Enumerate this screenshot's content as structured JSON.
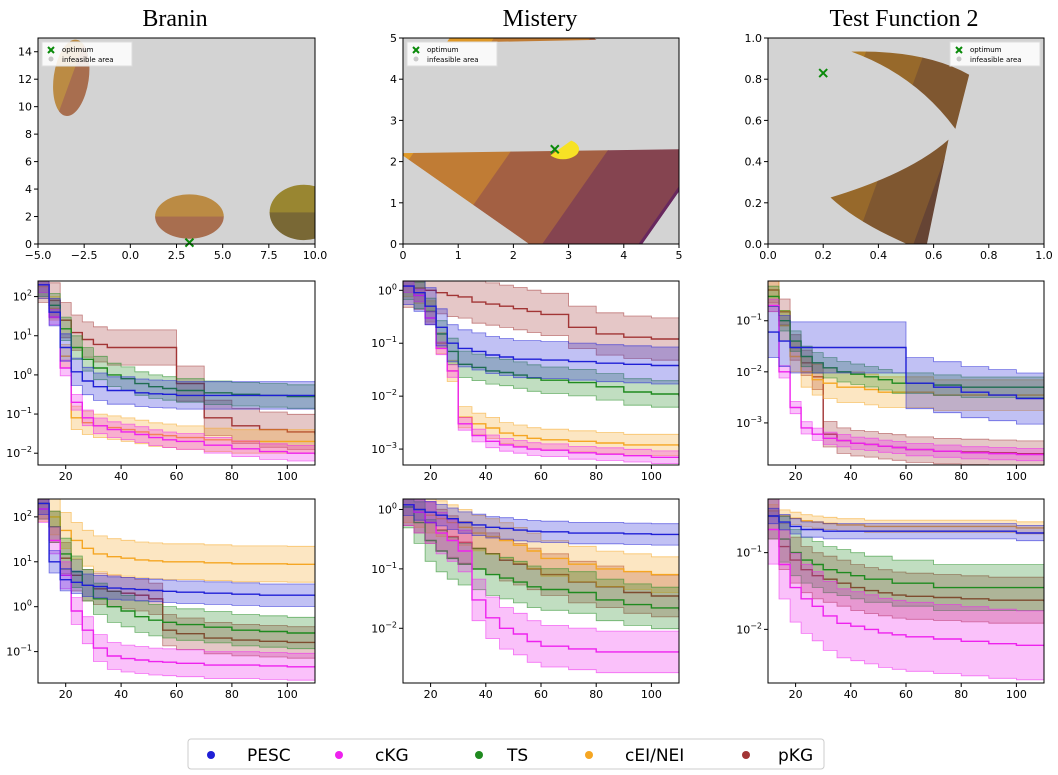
{
  "colors": {
    "PESC": "#1f1fd6",
    "cKG": "#ee22ee",
    "TS": "#1f8a1f",
    "cEI/NEI": "#f5a623",
    "pKG": "#a23535",
    "infeasible": "#d3d3d3",
    "optimum": "#0a8a0a"
  },
  "columns": [
    "Branin",
    "Mistery",
    "Test Function 2"
  ],
  "legend": {
    "entries": [
      "PESC",
      "cKG",
      "TS",
      "cEI/NEI",
      "pKG"
    ]
  },
  "chart_data": [
    {
      "type": "heatmap",
      "title": "Branin",
      "xlim": [
        -5,
        10
      ],
      "ylim": [
        0,
        15
      ],
      "xticks": [
        "−5.0",
        "−2.5",
        "0.0",
        "2.5",
        "5.0",
        "7.5",
        "10.0"
      ],
      "yticks": [
        "0",
        "2",
        "4",
        "6",
        "8",
        "10",
        "12",
        "14"
      ],
      "optimum": [
        3.2,
        0.1
      ],
      "legend": [
        "optimum",
        "infeasible area"
      ]
    },
    {
      "type": "heatmap",
      "title": "Mistery",
      "xlim": [
        0,
        5
      ],
      "ylim": [
        0,
        5
      ],
      "xticks": [
        "0",
        "1",
        "2",
        "3",
        "4",
        "5"
      ],
      "yticks": [
        "0",
        "1",
        "2",
        "3",
        "4",
        "5"
      ],
      "optimum": [
        2.75,
        2.3
      ],
      "legend": [
        "optimum",
        "infeasible area"
      ]
    },
    {
      "type": "heatmap",
      "title": "Test Function 2",
      "xlim": [
        0,
        1
      ],
      "ylim": [
        0,
        1
      ],
      "xticks": [
        "0.0",
        "0.2",
        "0.4",
        "0.6",
        "0.8",
        "1.0"
      ],
      "yticks": [
        "0.0",
        "0.2",
        "0.4",
        "0.6",
        "0.8",
        "1.0"
      ],
      "optimum": [
        0.2,
        0.83
      ],
      "legend": [
        "optimum",
        "infeasible area"
      ]
    },
    {
      "type": "line",
      "scale": "log",
      "xlim": [
        10,
        110
      ],
      "ylim": [
        0.005,
        250
      ],
      "xticks": [
        20,
        40,
        60,
        80,
        100
      ],
      "ytick_exps": [
        -2,
        -1,
        0,
        1,
        2
      ],
      "x": [
        10,
        14,
        18,
        22,
        26,
        30,
        35,
        40,
        45,
        50,
        55,
        60,
        70,
        80,
        90,
        100,
        110
      ],
      "series": [
        {
          "name": "PESC",
          "values": [
            200,
            40,
            5,
            1.2,
            0.7,
            0.5,
            0.4,
            0.4,
            0.35,
            0.33,
            0.32,
            0.3,
            0.3,
            0.3,
            0.3,
            0.3,
            0.3
          ],
          "band": 0.35
        },
        {
          "name": "cKG",
          "values": [
            200,
            30,
            1.5,
            0.2,
            0.08,
            0.05,
            0.04,
            0.035,
            0.03,
            0.025,
            0.022,
            0.02,
            0.016,
            0.013,
            0.011,
            0.01,
            0.009
          ],
          "band": 0.2
        },
        {
          "name": "TS",
          "values": [
            200,
            60,
            15,
            5,
            2.5,
            1.5,
            1,
            0.8,
            0.6,
            0.5,
            0.45,
            0.4,
            0.35,
            0.32,
            0.3,
            0.28,
            0.27
          ],
          "band": 0.3
        },
        {
          "name": "cEI/NEI",
          "values": [
            180,
            50,
            3,
            0.08,
            0.06,
            0.05,
            0.045,
            0.04,
            0.035,
            0.03,
            0.028,
            0.025,
            0.022,
            0.02,
            0.02,
            0.02,
            0.02
          ],
          "band": 0.3
        },
        {
          "name": "pKG",
          "values": [
            200,
            80,
            25,
            12,
            8,
            6,
            5,
            5,
            5,
            5,
            5,
            0.6,
            0.08,
            0.05,
            0.04,
            0.035,
            0.03
          ],
          "band": 0.45
        }
      ]
    },
    {
      "type": "line",
      "scale": "log",
      "xlim": [
        10,
        110
      ],
      "ylim": [
        0.0005,
        1.5
      ],
      "xticks": [
        20,
        40,
        60,
        80,
        100
      ],
      "ytick_exps": [
        -3,
        -2,
        -1,
        0
      ],
      "x": [
        10,
        14,
        18,
        22,
        26,
        30,
        35,
        40,
        45,
        50,
        55,
        60,
        70,
        80,
        90,
        100,
        110
      ],
      "series": [
        {
          "name": "PESC",
          "values": [
            1.2,
            0.9,
            0.5,
            0.2,
            0.1,
            0.08,
            0.07,
            0.06,
            0.055,
            0.05,
            0.05,
            0.048,
            0.045,
            0.042,
            0.04,
            0.038,
            0.037
          ],
          "band": 0.35
        },
        {
          "name": "cKG",
          "values": [
            1.2,
            0.8,
            0.3,
            0.08,
            0.03,
            0.003,
            0.0018,
            0.0014,
            0.0012,
            0.0011,
            0.001,
            0.00095,
            0.00085,
            0.0008,
            0.00075,
            0.0007,
            0.00068
          ],
          "band": 0.12
        },
        {
          "name": "TS",
          "values": [
            1.2,
            0.8,
            0.4,
            0.15,
            0.07,
            0.04,
            0.035,
            0.03,
            0.028,
            0.025,
            0.022,
            0.02,
            0.018,
            0.015,
            0.012,
            0.011,
            0.01
          ],
          "band": 0.25
        },
        {
          "name": "cEI/NEI",
          "values": [
            1.2,
            0.9,
            0.4,
            0.1,
            0.03,
            0.004,
            0.003,
            0.0025,
            0.002,
            0.0018,
            0.0016,
            0.0015,
            0.0014,
            0.0013,
            0.0012,
            0.0012,
            0.0011
          ],
          "band": 0.2
        },
        {
          "name": "pKG",
          "values": [
            1.2,
            1.1,
            1,
            0.9,
            0.8,
            0.75,
            0.6,
            0.55,
            0.5,
            0.45,
            0.4,
            0.35,
            0.2,
            0.15,
            0.13,
            0.12,
            0.12
          ],
          "band": 0.4
        }
      ]
    },
    {
      "type": "line",
      "scale": "log",
      "xlim": [
        10,
        110
      ],
      "ylim": [
        0.00015,
        0.6
      ],
      "xticks": [
        20,
        40,
        60,
        80,
        100
      ],
      "ytick_exps": [
        -3,
        -2,
        -1
      ],
      "x": [
        10,
        14,
        18,
        22,
        26,
        30,
        35,
        40,
        45,
        50,
        55,
        60,
        70,
        80,
        90,
        100,
        110
      ],
      "series": [
        {
          "name": "PESC",
          "values": [
            0.06,
            0.04,
            0.03,
            0.03,
            0.03,
            0.03,
            0.03,
            0.03,
            0.03,
            0.03,
            0.03,
            0.006,
            0.005,
            0.004,
            0.0035,
            0.003,
            0.003
          ],
          "band": 0.5
        },
        {
          "name": "cKG",
          "values": [
            0.2,
            0.01,
            0.002,
            0.0008,
            0.0006,
            0.0005,
            0.00045,
            0.0004,
            0.00038,
            0.00035,
            0.00033,
            0.0003,
            0.00028,
            0.00026,
            0.00025,
            0.00024,
            0.00023
          ],
          "band": 0.12
        },
        {
          "name": "TS",
          "values": [
            0.3,
            0.1,
            0.04,
            0.02,
            0.015,
            0.012,
            0.01,
            0.009,
            0.008,
            0.007,
            0.006,
            0.006,
            0.0055,
            0.005,
            0.005,
            0.005,
            0.005
          ],
          "band": 0.2
        },
        {
          "name": "cEI/NEI",
          "values": [
            0.3,
            0.08,
            0.02,
            0.01,
            0.007,
            0.006,
            0.005,
            0.005,
            0.0045,
            0.004,
            0.004,
            0.004,
            0.0035,
            0.0035,
            0.0035,
            0.0035,
            0.0035
          ],
          "band": 0.3
        },
        {
          "name": "pKG",
          "values": [
            0.4,
            0.15,
            0.03,
            0.015,
            0.008,
            0.0006,
            0.00045,
            0.0004,
            0.00038,
            0.00035,
            0.00033,
            0.0003,
            0.00028,
            0.00027,
            0.00026,
            0.00025,
            0.00024
          ],
          "band": 0.25
        }
      ]
    },
    {
      "type": "line",
      "scale": "log",
      "xlim": [
        10,
        110
      ],
      "ylim": [
        0.02,
        250
      ],
      "xticks": [
        20,
        40,
        60,
        80,
        100
      ],
      "ytick_exps": [
        -1,
        0,
        1,
        2
      ],
      "x": [
        10,
        14,
        18,
        22,
        26,
        30,
        35,
        40,
        45,
        50,
        55,
        60,
        70,
        80,
        90,
        100,
        110
      ],
      "series": [
        {
          "name": "PESC",
          "values": [
            200,
            10,
            4,
            3.5,
            3,
            2.8,
            2.6,
            2.5,
            2.4,
            2.3,
            2.2,
            2.1,
            2,
            1.9,
            1.8,
            1.8,
            1.7
          ],
          "band": 0.25
        },
        {
          "name": "cKG",
          "values": [
            150,
            30,
            5,
            0.8,
            0.3,
            0.12,
            0.08,
            0.07,
            0.065,
            0.06,
            0.058,
            0.055,
            0.05,
            0.05,
            0.048,
            0.046,
            0.045
          ],
          "band": 0.3
        },
        {
          "name": "TS",
          "values": [
            200,
            60,
            15,
            6,
            3,
            1.5,
            1,
            0.8,
            0.6,
            0.5,
            0.45,
            0.4,
            0.35,
            0.3,
            0.28,
            0.26,
            0.25
          ],
          "band": 0.35
        },
        {
          "name": "cEI/NEI",
          "values": [
            200,
            100,
            50,
            30,
            20,
            15,
            13,
            12,
            11,
            10.5,
            10,
            10,
            9.5,
            9,
            9,
            8.8,
            8.5
          ],
          "band": 0.4
        },
        {
          "name": "pKG",
          "values": [
            200,
            60,
            12,
            5,
            3,
            2.5,
            2.2,
            2,
            1.8,
            1.5,
            0.3,
            0.25,
            0.2,
            0.18,
            0.17,
            0.16,
            0.16
          ],
          "band": 0.35
        }
      ]
    },
    {
      "type": "line",
      "scale": "log",
      "xlim": [
        10,
        110
      ],
      "ylim": [
        0.0012,
        1.5
      ],
      "xticks": [
        20,
        40,
        60,
        80,
        100
      ],
      "ytick_exps": [
        -2,
        -1,
        0
      ],
      "x": [
        10,
        14,
        18,
        22,
        26,
        30,
        35,
        40,
        45,
        50,
        55,
        60,
        70,
        80,
        90,
        100,
        110
      ],
      "series": [
        {
          "name": "PESC",
          "values": [
            1.2,
            1,
            0.9,
            0.8,
            0.7,
            0.6,
            0.55,
            0.5,
            0.48,
            0.45,
            0.43,
            0.42,
            0.4,
            0.4,
            0.39,
            0.38,
            0.38
          ],
          "band": 0.18
        },
        {
          "name": "cKG",
          "values": [
            1.2,
            0.9,
            0.6,
            0.4,
            0.3,
            0.2,
            0.03,
            0.015,
            0.01,
            0.008,
            0.006,
            0.005,
            0.0045,
            0.004,
            0.004,
            0.004,
            0.004
          ],
          "band": 0.35
        },
        {
          "name": "TS",
          "values": [
            1.1,
            0.6,
            0.3,
            0.2,
            0.15,
            0.12,
            0.1,
            0.08,
            0.07,
            0.06,
            0.05,
            0.045,
            0.04,
            0.03,
            0.025,
            0.022,
            0.02
          ],
          "band": 0.35
        },
        {
          "name": "cEI/NEI",
          "values": [
            1.2,
            1,
            0.8,
            0.7,
            0.6,
            0.5,
            0.4,
            0.35,
            0.3,
            0.25,
            0.2,
            0.15,
            0.12,
            0.1,
            0.09,
            0.08,
            0.08
          ],
          "band": 0.3
        },
        {
          "name": "pKG",
          "values": [
            1.2,
            0.9,
            0.6,
            0.45,
            0.35,
            0.28,
            0.22,
            0.18,
            0.14,
            0.12,
            0.1,
            0.08,
            0.06,
            0.05,
            0.04,
            0.035,
            0.03
          ],
          "band": 0.35
        }
      ]
    },
    {
      "type": "line",
      "scale": "log",
      "xlim": [
        10,
        110
      ],
      "ylim": [
        0.002,
        0.5
      ],
      "xticks": [
        20,
        40,
        60,
        80,
        100
      ],
      "ytick_exps": [
        -2,
        -1
      ],
      "x": [
        10,
        14,
        18,
        22,
        26,
        30,
        35,
        40,
        45,
        50,
        55,
        60,
        70,
        80,
        90,
        100,
        110
      ],
      "series": [
        {
          "name": "PESC",
          "values": [
            0.3,
            0.25,
            0.22,
            0.2,
            0.2,
            0.19,
            0.19,
            0.19,
            0.19,
            0.19,
            0.19,
            0.19,
            0.19,
            0.19,
            0.19,
            0.18,
            0.18
          ],
          "band": 0.1
        },
        {
          "name": "cKG",
          "values": [
            0.2,
            0.07,
            0.035,
            0.025,
            0.02,
            0.015,
            0.012,
            0.011,
            0.01,
            0.009,
            0.0085,
            0.008,
            0.0075,
            0.007,
            0.0065,
            0.0062,
            0.006
          ],
          "band": 0.45
        },
        {
          "name": "TS",
          "values": [
            0.3,
            0.15,
            0.1,
            0.08,
            0.07,
            0.06,
            0.055,
            0.05,
            0.045,
            0.045,
            0.04,
            0.04,
            0.035,
            0.035,
            0.035,
            0.035,
            0.035
          ],
          "band": 0.3
        },
        {
          "name": "cEI/NEI",
          "values": [
            0.35,
            0.3,
            0.28,
            0.26,
            0.25,
            0.24,
            0.23,
            0.23,
            0.22,
            0.22,
            0.22,
            0.22,
            0.22,
            0.22,
            0.22,
            0.21,
            0.21
          ],
          "band": 0.08
        },
        {
          "name": "pKG",
          "values": [
            0.3,
            0.12,
            0.08,
            0.06,
            0.05,
            0.045,
            0.04,
            0.035,
            0.032,
            0.03,
            0.028,
            0.027,
            0.026,
            0.025,
            0.024,
            0.024,
            0.023
          ],
          "band": 0.3
        }
      ]
    }
  ]
}
